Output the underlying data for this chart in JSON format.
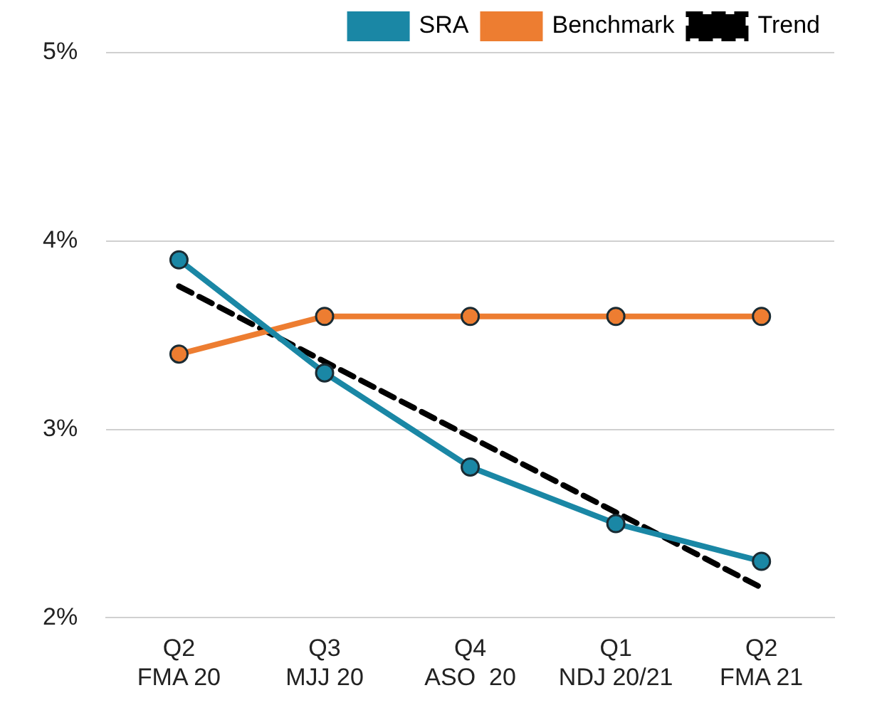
{
  "chart_data": {
    "type": "line",
    "categories": [
      "Q2\nFMA 20",
      "Q3\nMJJ 20",
      "Q4\nASO  20",
      "Q1\nNDJ 20/21",
      "Q2\nFMA 21"
    ],
    "series": [
      {
        "name": "SRA",
        "color": "#1a87a5",
        "values": [
          3.9,
          3.3,
          2.8,
          2.5,
          2.3
        ],
        "marker": "circle",
        "line_style": "solid"
      },
      {
        "name": "Benchmark",
        "color": "#ed7d31",
        "values": [
          3.4,
          3.6,
          3.6,
          3.6,
          3.6
        ],
        "marker": "circle",
        "line_style": "solid"
      },
      {
        "name": "Trend",
        "color": "#000000",
        "values": [
          3.76,
          3.36,
          2.96,
          2.56,
          2.16
        ],
        "marker": "none",
        "line_style": "dashed"
      }
    ],
    "ylim": [
      2,
      5
    ],
    "yticks": [
      {
        "value": 2,
        "label": "2%"
      },
      {
        "value": 3,
        "label": "3%"
      },
      {
        "value": 4,
        "label": "4%"
      },
      {
        "value": 5,
        "label": "5%"
      }
    ],
    "grid": "y",
    "legend": "top"
  }
}
